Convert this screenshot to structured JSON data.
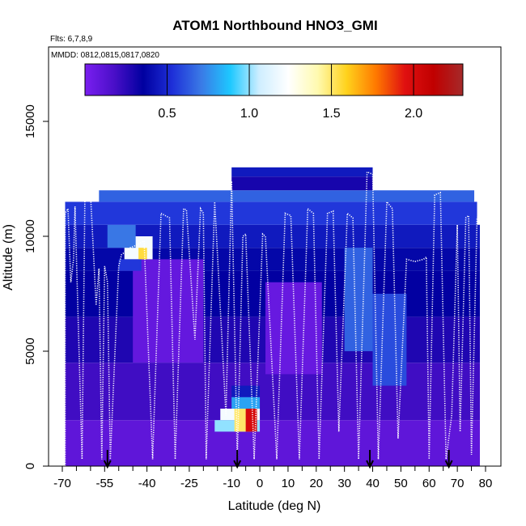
{
  "chart_data": {
    "type": "heatmap",
    "title": "ATOM1 Northbound HNO3_GMI",
    "subtitle_flights": "Flts: 6,7,8,9",
    "subtitle_dates": "MMDD: 0812,0815,0817,0820",
    "xlabel": "Latitude (deg N)",
    "ylabel": "Altitude (m)",
    "xlim": [
      -70,
      80
    ],
    "ylim": [
      0,
      17500
    ],
    "x_ticks": [
      "-70",
      "-55",
      "-40",
      "-25",
      "-10",
      "0",
      "10",
      "20",
      "30",
      "40",
      "50",
      "60",
      "70",
      "80"
    ],
    "y_ticks": [
      "0",
      "5000",
      "10000",
      "15000"
    ],
    "x_tick_values": [
      -70,
      -55,
      -40,
      -25,
      -10,
      0,
      10,
      20,
      30,
      40,
      50,
      60,
      70,
      80
    ],
    "y_tick_values": [
      0,
      5000,
      10000,
      15000
    ],
    "x_minor_ticks": [
      -65,
      -60,
      -50,
      -45,
      -35,
      -30,
      -20,
      -15,
      -5,
      5,
      15,
      25,
      35,
      45,
      55,
      65,
      75
    ],
    "colorbar": {
      "range": [
        0,
        2.3
      ],
      "ticks": [
        "0.5",
        "1.0",
        "1.5",
        "2.0"
      ],
      "tick_values": [
        0.5,
        1.0,
        1.5,
        2.0
      ],
      "stops": [
        "#7a1ff0",
        "#4a0fc8",
        "#0000a0",
        "#1e2fd8",
        "#3a7ae6",
        "#1ec8ff",
        "#cfeeff",
        "#ffffff",
        "#fffab0",
        "#ffd21c",
        "#ff7a00",
        "#e01010",
        "#c00000",
        "#a52a2a"
      ]
    },
    "flight_markers_lat": [
      -54,
      -8,
      39,
      67
    ],
    "heat_rows": [
      {
        "alt": [
          0,
          2000
        ],
        "lat": [
          -69,
          78
        ],
        "value": 0.1
      },
      {
        "alt": [
          2000,
          4500
        ],
        "lat": [
          -69,
          78
        ],
        "value": 0.2
      },
      {
        "alt": [
          4500,
          6500
        ],
        "lat": [
          -69,
          78
        ],
        "value": 0.28
      },
      {
        "alt": [
          6500,
          8500
        ],
        "lat": [
          -69,
          78
        ],
        "value": 0.35
      },
      {
        "alt": [
          8500,
          9500
        ],
        "lat": [
          -69,
          78
        ],
        "value": 0.38
      },
      {
        "alt": [
          9500,
          10500
        ],
        "lat": [
          -69,
          78
        ],
        "value": 0.45
      },
      {
        "alt": [
          10500,
          11500
        ],
        "lat": [
          -69,
          77
        ],
        "value": 0.55
      },
      {
        "alt": [
          11500,
          12000
        ],
        "lat": [
          -57,
          76
        ],
        "value": 0.65
      },
      {
        "alt": [
          12000,
          12600
        ],
        "lat": [
          -10,
          40
        ],
        "value": 0.3
      },
      {
        "alt": [
          12600,
          13000
        ],
        "lat": [
          -10,
          40
        ],
        "value": 0.45
      }
    ],
    "heat_patches": [
      {
        "alt": [
          4500,
          9000
        ],
        "lat": [
          -45,
          -20
        ],
        "value": 0.08
      },
      {
        "alt": [
          4000,
          8000
        ],
        "lat": [
          2,
          22
        ],
        "value": 0.07
      },
      {
        "alt": [
          3500,
          7500
        ],
        "lat": [
          40,
          52
        ],
        "value": 0.6
      },
      {
        "alt": [
          5000,
          9500
        ],
        "lat": [
          30,
          40
        ],
        "value": 0.65
      },
      {
        "alt": [
          9000,
          10000
        ],
        "lat": [
          -48,
          -38
        ],
        "value": 1.2
      },
      {
        "alt": [
          9000,
          9500
        ],
        "lat": [
          -43,
          -40
        ],
        "value": 1.55
      },
      {
        "alt": [
          8500,
          9000
        ],
        "lat": [
          -50,
          -42
        ],
        "value": 0.55
      },
      {
        "alt": [
          9500,
          10500
        ],
        "lat": [
          -54,
          -44
        ],
        "value": 0.7
      },
      {
        "alt": [
          3000,
          3500
        ],
        "lat": [
          -10,
          0
        ],
        "value": 0.45
      },
      {
        "alt": [
          2500,
          3000
        ],
        "lat": [
          -10,
          0
        ],
        "value": 0.8
      },
      {
        "alt": [
          2000,
          2500
        ],
        "lat": [
          -14,
          0
        ],
        "value": 1.2
      },
      {
        "alt": [
          1500,
          2000
        ],
        "lat": [
          -16,
          0
        ],
        "value": 1.0
      },
      {
        "alt": [
          1500,
          2500
        ],
        "lat": [
          -9,
          -3
        ],
        "value": 1.5
      },
      {
        "alt": [
          1500,
          2500
        ],
        "lat": [
          -5,
          -1
        ],
        "value": 2.0
      }
    ],
    "flight_track": [
      [
        -69,
        0
      ],
      [
        -69,
        11000
      ],
      [
        -68,
        11200
      ],
      [
        -67,
        8000
      ],
      [
        -66,
        9000
      ],
      [
        -65.5,
        11300
      ],
      [
        -63,
        300
      ],
      [
        -62,
        11700
      ],
      [
        -60,
        11800
      ],
      [
        -58,
        7000
      ],
      [
        -57,
        8600
      ],
      [
        -56,
        300
      ],
      [
        -55,
        8700
      ],
      [
        -54,
        8000
      ],
      [
        -53,
        300
      ],
      [
        -50,
        8700
      ],
      [
        -49,
        9200
      ],
      [
        -46,
        9500
      ],
      [
        -44,
        9600
      ],
      [
        -41,
        9800
      ],
      [
        -38,
        300
      ],
      [
        -35,
        11000
      ],
      [
        -32,
        10800
      ],
      [
        -30,
        300
      ],
      [
        -27,
        11200
      ],
      [
        -26,
        11150
      ],
      [
        -23,
        5500
      ],
      [
        -21,
        11200
      ],
      [
        -20,
        11000
      ],
      [
        -19,
        300
      ],
      [
        -16,
        11500
      ],
      [
        -12,
        2200
      ],
      [
        -10,
        12400
      ],
      [
        -8,
        300
      ],
      [
        -6,
        10000
      ],
      [
        -5,
        10100
      ],
      [
        -2,
        300
      ],
      [
        1,
        10100
      ],
      [
        2,
        10000
      ],
      [
        6,
        300
      ],
      [
        9,
        11000
      ],
      [
        11,
        10900
      ],
      [
        14,
        300
      ],
      [
        17,
        11200
      ],
      [
        19,
        11000
      ],
      [
        21,
        300
      ],
      [
        24,
        11000
      ],
      [
        26,
        11100
      ],
      [
        28,
        1500
      ],
      [
        31,
        11000
      ],
      [
        33,
        10800
      ],
      [
        35,
        300
      ],
      [
        38,
        12800
      ],
      [
        40,
        12700
      ],
      [
        42,
        300
      ],
      [
        45,
        11500
      ],
      [
        47,
        11200
      ],
      [
        49,
        1200
      ],
      [
        52,
        9000
      ],
      [
        55,
        8900
      ],
      [
        58,
        9000
      ],
      [
        59,
        9100
      ],
      [
        60,
        300
      ],
      [
        62,
        11800
      ],
      [
        64,
        11900
      ],
      [
        66,
        300
      ],
      [
        68,
        2200
      ],
      [
        70,
        10500
      ],
      [
        71,
        1500
      ],
      [
        73,
        10800
      ],
      [
        74,
        10900
      ],
      [
        75,
        500
      ],
      [
        77,
        10800
      ],
      [
        78,
        11000
      ]
    ]
  }
}
